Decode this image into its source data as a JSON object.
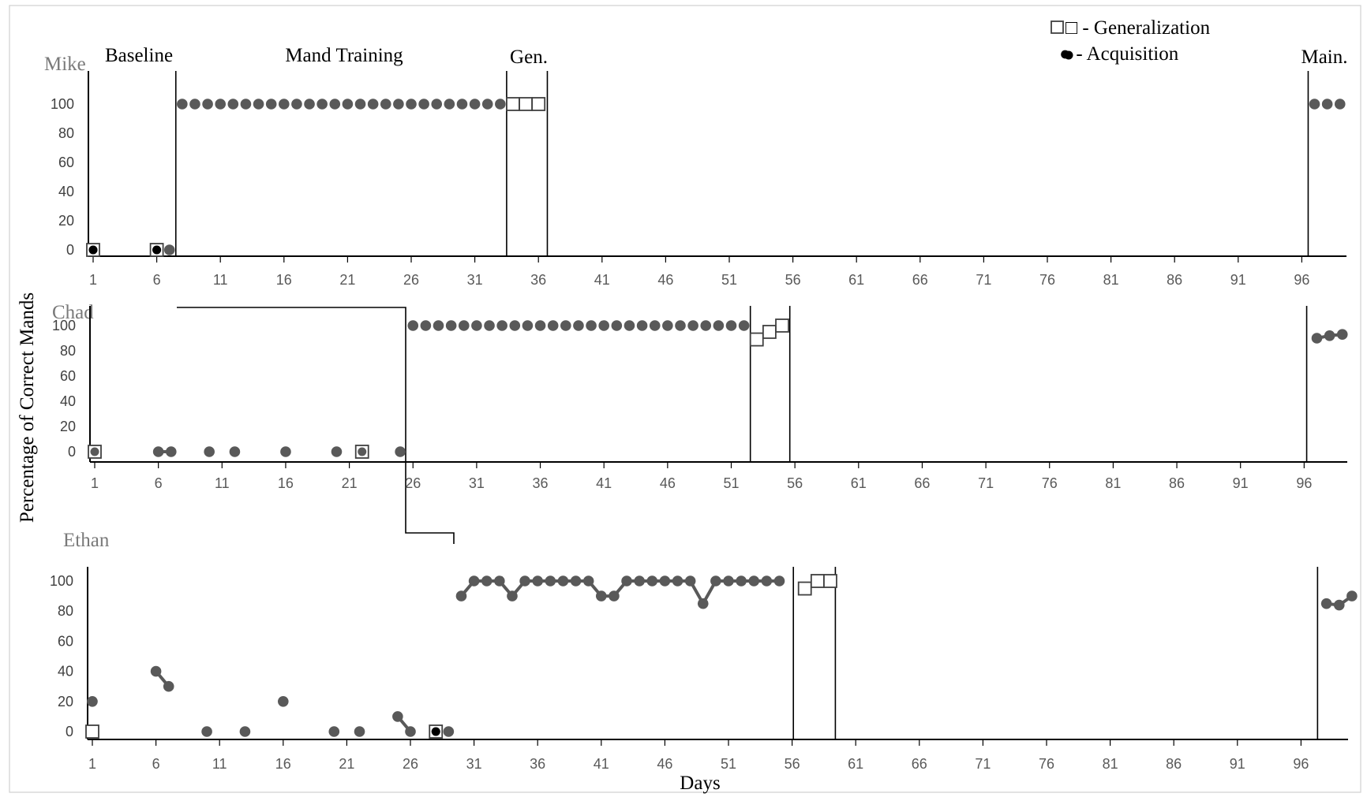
{
  "chart_data": {
    "type": "line",
    "legend": {
      "placement": "top-right",
      "items": [
        {
          "symbol": "hollow-square",
          "label": "□ - Generalization"
        },
        {
          "symbol": "filled-circle",
          "label": "● - Acquisition"
        }
      ]
    },
    "ylabel": "Percentage  of Correct Mands",
    "xlabel": "Days",
    "ylim": [
      0,
      100
    ],
    "yticks": [
      "0",
      "20",
      "40",
      "60",
      "80",
      "100"
    ],
    "xlim": [
      1,
      100
    ],
    "xticks": [
      "1",
      "6",
      "11",
      "16",
      "21",
      "26",
      "31",
      "36",
      "41",
      "46",
      "51",
      "56",
      "61",
      "66",
      "71",
      "76",
      "81",
      "86",
      "91",
      "96"
    ],
    "grid": false,
    "colors": {
      "series": "#595959",
      "axes": "#000000",
      "black_marker": "#000000"
    },
    "phase_labels": [
      "Baseline",
      "Mand Training",
      "Gen.",
      "Main."
    ],
    "panels": [
      {
        "participant": "Mike",
        "phase_change_days": [
          7.5,
          33.5,
          36.7,
          96.5
        ],
        "series": [
          {
            "kind": "acquisition",
            "points": [
              [
                1,
                0
              ],
              [
                6,
                0
              ],
              [
                7,
                0
              ],
              [
                8,
                100
              ],
              [
                9,
                100
              ],
              [
                10,
                100
              ],
              [
                11,
                100
              ],
              [
                12,
                100
              ],
              [
                13,
                100
              ],
              [
                14,
                100
              ],
              [
                15,
                100
              ],
              [
                16,
                100
              ],
              [
                17,
                100
              ],
              [
                18,
                100
              ],
              [
                19,
                100
              ],
              [
                20,
                100
              ],
              [
                21,
                100
              ],
              [
                22,
                100
              ],
              [
                23,
                100
              ],
              [
                24,
                100
              ],
              [
                25,
                100
              ],
              [
                26,
                100
              ],
              [
                27,
                100
              ],
              [
                28,
                100
              ],
              [
                29,
                100
              ],
              [
                30,
                100
              ],
              [
                31,
                100
              ],
              [
                32,
                100
              ],
              [
                33,
                100
              ],
              [
                97,
                100
              ],
              [
                98,
                100
              ],
              [
                99,
                100
              ]
            ]
          },
          {
            "kind": "generalization",
            "points": [
              [
                1,
                0
              ],
              [
                6,
                0
              ],
              [
                34,
                100
              ],
              [
                35,
                100
              ],
              [
                36,
                100
              ]
            ]
          }
        ],
        "black_markers": [
          [
            1,
            0
          ],
          [
            6,
            0
          ]
        ],
        "connected_runs": []
      },
      {
        "participant": "Chad",
        "phase_change_days": [
          52.5,
          55.6,
          96.2
        ],
        "series": [
          {
            "kind": "acquisition",
            "points": [
              [
                1,
                0
              ],
              [
                6,
                0
              ],
              [
                7,
                0
              ],
              [
                10,
                0
              ],
              [
                12,
                0
              ],
              [
                16,
                0
              ],
              [
                20,
                0
              ],
              [
                22,
                0
              ],
              [
                25,
                0
              ],
              [
                26,
                100
              ],
              [
                27,
                100
              ],
              [
                28,
                100
              ],
              [
                29,
                100
              ],
              [
                30,
                100
              ],
              [
                31,
                100
              ],
              [
                32,
                100
              ],
              [
                33,
                100
              ],
              [
                34,
                100
              ],
              [
                35,
                100
              ],
              [
                36,
                100
              ],
              [
                37,
                100
              ],
              [
                38,
                100
              ],
              [
                39,
                100
              ],
              [
                40,
                100
              ],
              [
                41,
                100
              ],
              [
                42,
                100
              ],
              [
                43,
                100
              ],
              [
                44,
                100
              ],
              [
                45,
                100
              ],
              [
                46,
                100
              ],
              [
                47,
                100
              ],
              [
                48,
                100
              ],
              [
                49,
                100
              ],
              [
                50,
                100
              ],
              [
                51,
                100
              ],
              [
                52,
                100
              ],
              [
                97,
                90
              ],
              [
                98,
                92
              ],
              [
                99,
                93
              ]
            ]
          },
          {
            "kind": "generalization",
            "points": [
              [
                1,
                0
              ],
              [
                22,
                0
              ],
              [
                53,
                89
              ],
              [
                54,
                95
              ],
              [
                55,
                100
              ]
            ]
          }
        ],
        "black_markers": [],
        "connected_runs": [
          [
            6,
            7
          ],
          [
            53,
            55
          ],
          [
            97,
            99
          ]
        ]
      },
      {
        "participant": "Ethan",
        "phase_change_days": [
          56.1,
          59.4,
          97.3
        ],
        "series": [
          {
            "kind": "acquisition",
            "points": [
              [
                1,
                20
              ],
              [
                6,
                40
              ],
              [
                7,
                30
              ],
              [
                10,
                0
              ],
              [
                13,
                0
              ],
              [
                16,
                20
              ],
              [
                20,
                0
              ],
              [
                22,
                0
              ],
              [
                25,
                10
              ],
              [
                26,
                0
              ],
              [
                28,
                0
              ],
              [
                29,
                0
              ],
              [
                30,
                90
              ],
              [
                31,
                100
              ],
              [
                32,
                100
              ],
              [
                33,
                100
              ],
              [
                34,
                90
              ],
              [
                35,
                100
              ],
              [
                36,
                100
              ],
              [
                37,
                100
              ],
              [
                38,
                100
              ],
              [
                39,
                100
              ],
              [
                40,
                100
              ],
              [
                41,
                90
              ],
              [
                42,
                90
              ],
              [
                43,
                100
              ],
              [
                44,
                100
              ],
              [
                45,
                100
              ],
              [
                46,
                100
              ],
              [
                47,
                100
              ],
              [
                48,
                100
              ],
              [
                49,
                85
              ],
              [
                50,
                100
              ],
              [
                51,
                100
              ],
              [
                52,
                100
              ],
              [
                53,
                100
              ],
              [
                54,
                100
              ],
              [
                55,
                100
              ],
              [
                98,
                85
              ],
              [
                99,
                84
              ],
              [
                100,
                90
              ]
            ]
          },
          {
            "kind": "generalization",
            "points": [
              [
                1,
                0
              ],
              [
                28,
                0
              ],
              [
                57,
                95
              ],
              [
                58,
                100
              ],
              [
                59,
                100
              ]
            ]
          }
        ],
        "black_markers": [
          [
            28,
            0
          ]
        ],
        "connected_runs": [
          [
            6,
            7
          ],
          [
            25,
            26
          ],
          [
            30,
            55
          ],
          [
            57,
            59
          ],
          [
            98,
            100
          ]
        ]
      }
    ]
  }
}
